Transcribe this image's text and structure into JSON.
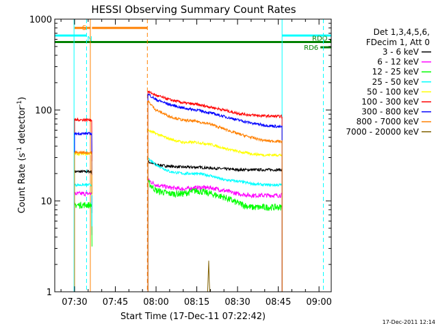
{
  "chart_data": {
    "type": "line",
    "title": "HESSI Observing Summary Count Rates",
    "xlabel": "Start Time (17-Dec-11 07:22:42)",
    "ylabel": "Count Rate (s⁻¹ detector⁻¹)",
    "ylabel_parts": {
      "pre": "Count Rate (s",
      "sup1": "-1",
      "mid": " detector",
      "sup2": "-1",
      "post": ")"
    },
    "y_scale": "log",
    "ylim": [
      1,
      1000
    ],
    "xlim_minutes": [
      22.7,
      124.5
    ],
    "x_tick_labels": [
      "07:30",
      "07:45",
      "08:00",
      "08:15",
      "08:30",
      "08:45",
      "09:00"
    ],
    "x_tick_minutes": [
      30,
      45,
      60,
      75,
      90,
      105,
      120
    ],
    "y_tick_labels": [
      "1",
      "10",
      "100",
      "1000"
    ],
    "y_tick_values": [
      1,
      10,
      100,
      1000
    ],
    "legend_header": [
      "Det 1,3,4,5,6,",
      "FDecim 1, Att 0"
    ],
    "legend_placement": "right",
    "timestamp": "17-Dec-2011 12:14",
    "gap_marker_minutes": [
      36.4,
      56.8
    ],
    "sec": {
      "start": 29.8,
      "end": 36.4,
      "jump_to": 52,
      "start_values": [
        7,
        9,
        11,
        13
      ]
    },
    "series": [
      {
        "name": "3 - 6 keV",
        "color": "#000000",
        "segments": [
          {
            "x": [
              30,
              36.4
            ],
            "y": [
              21,
              21
            ]
          },
          {
            "x": [
              57,
              60,
              65,
              70,
              75,
              80,
              85,
              90,
              95,
              100,
              106.4
            ],
            "y": [
              27,
              25,
              24,
              23.5,
              23.5,
              23,
              22.5,
              22,
              22,
              22,
              22
            ]
          }
        ]
      },
      {
        "name": "6 - 12 keV",
        "color": "#ff00ff",
        "segments": [
          {
            "x": [
              30,
              36.4
            ],
            "y": [
              12,
              12
            ]
          },
          {
            "x": [
              57,
              60,
              65,
              70,
              75,
              80,
              85,
              90,
              95,
              100,
              106.4
            ],
            "y": [
              17,
              15,
              14,
              13.5,
              14,
              14,
              13,
              12,
              11.5,
              11.5,
              11.5
            ]
          }
        ]
      },
      {
        "name": "12 - 25 keV",
        "color": "#00ff00",
        "segments": [
          {
            "x": [
              30,
              36.4
            ],
            "y": [
              9,
              9
            ]
          },
          {
            "x": [
              57,
              60,
              65,
              70,
              75,
              80,
              85,
              90,
              95,
              100,
              106.4
            ],
            "y": [
              16,
              13,
              12,
              12,
              13,
              12,
              11,
              9.5,
              8.5,
              8.5,
              8.5
            ]
          }
        ]
      },
      {
        "name": "25 - 50 keV",
        "color": "#00ffff",
        "segments": [
          {
            "x": [
              30,
              36.4
            ],
            "y": [
              15,
              15
            ]
          },
          {
            "x": [
              57,
              60,
              65,
              70,
              75,
              80,
              85,
              90,
              95,
              100,
              106.4
            ],
            "y": [
              29,
              25,
              21,
              20,
              20,
              19,
              17,
              16.5,
              15.5,
              15,
              15
            ]
          }
        ]
      },
      {
        "name": "50 - 100 keV",
        "color": "#ffff00",
        "segments": [
          {
            "x": [
              30,
              36.4
            ],
            "y": [
              33,
              33
            ]
          },
          {
            "x": [
              57,
              60,
              65,
              70,
              75,
              80,
              85,
              90,
              95,
              100,
              106.4
            ],
            "y": [
              60,
              55,
              48,
              44,
              44,
              42,
              38,
              35,
              33,
              32,
              32
            ]
          }
        ]
      },
      {
        "name": "100 - 300 keV",
        "color": "#ff0000",
        "segments": [
          {
            "x": [
              30,
              36.4
            ],
            "y": [
              78,
              78
            ]
          },
          {
            "x": [
              57,
              60,
              65,
              70,
              75,
              80,
              85,
              90,
              95,
              100,
              106.4
            ],
            "y": [
              160,
              145,
              130,
              120,
              115,
              108,
              100,
              92,
              88,
              86,
              85
            ]
          }
        ]
      },
      {
        "name": "300 - 800 keV",
        "color": "#0000ff",
        "segments": [
          {
            "x": [
              30,
              36.4
            ],
            "y": [
              55,
              55
            ]
          },
          {
            "x": [
              57,
              60,
              65,
              70,
              75,
              80,
              85,
              90,
              95,
              100,
              106.4
            ],
            "y": [
              150,
              130,
              115,
              105,
              100,
              93,
              85,
              78,
              72,
              68,
              65
            ]
          }
        ]
      },
      {
        "name": "800 - 7000 keV",
        "color": "#ff8000",
        "segments": [
          {
            "x": [
              30,
              36.4
            ],
            "y": [
              34,
              34
            ]
          },
          {
            "x": [
              57,
              60,
              65,
              70,
              75,
              80,
              85,
              90,
              95,
              100,
              106.4
            ],
            "y": [
              125,
              100,
              85,
              77,
              75,
              70,
              62,
              55,
              50,
              46,
              45
            ]
          }
        ]
      },
      {
        "name": "7000 - 20000 keV",
        "color": "#806000",
        "segments": [
          {
            "x": [
              79.0,
              79.2,
              79.4,
              79.6,
              79.8
            ],
            "y": [
              1,
              1.5,
              2.2,
              1.3,
              1
            ]
          }
        ]
      }
    ],
    "state_bars": [
      {
        "label": "S",
        "color": "#ff8000",
        "y": 800,
        "x": [
          30,
          35.8
        ],
        "x2": [
          36.4,
          56.8
        ]
      },
      {
        "label": "N",
        "color": "#00ffff",
        "y": 660,
        "x": [
          22.7,
          34.4
        ],
        "x2": [
          106.4,
          124.5
        ]
      },
      {
        "label": "",
        "color": "#008000",
        "y": 560,
        "x": [
          22.7,
          124.5
        ]
      },
      {
        "label": "RD6",
        "color": "#008000",
        "y": 490,
        "x": [
          120.5,
          124.5
        ]
      },
      {
        "label": "RDO",
        "color": "#008000",
        "y": 590,
        "x": [
          124.0,
          124.5
        ]
      }
    ],
    "vlines": [
      {
        "color": "#00ffff",
        "x": 34.4,
        "style": "dashed"
      },
      {
        "color": "#ff8000",
        "x": 56.8,
        "style": "dashed"
      },
      {
        "color": "#00ffff",
        "x": 121.6,
        "style": "dashed"
      },
      {
        "color": "#00ffff",
        "x": 106.4,
        "style": "solid"
      },
      {
        "color": "#00ffff",
        "x": 29.8,
        "style": "solid"
      },
      {
        "color": "#ff8000",
        "x": 35.8,
        "style": "solid"
      }
    ]
  }
}
